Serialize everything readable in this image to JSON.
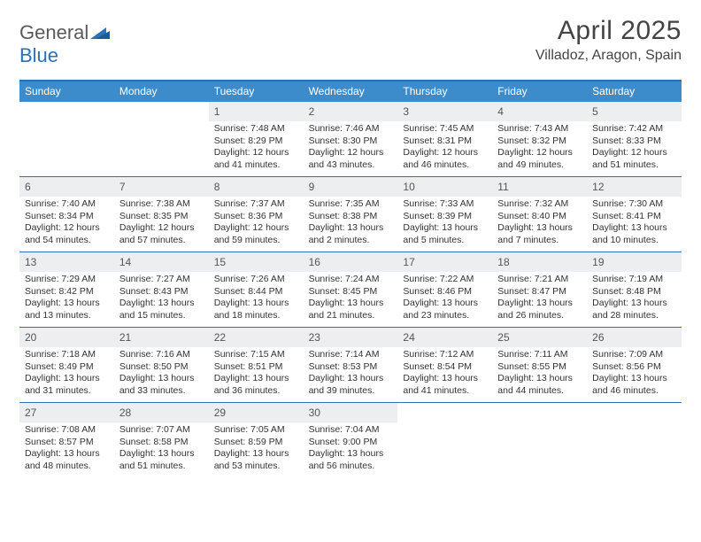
{
  "logo": {
    "text_gray": "General",
    "text_blue": "Blue"
  },
  "title": "April 2025",
  "location": "Villadoz, Aragon, Spain",
  "colors": {
    "header_bar": "#3c8ccc",
    "rule": "#2a71b8",
    "daynum_bg": "#eceeef",
    "text": "#333333"
  },
  "typography": {
    "title_fontsize": 30,
    "location_fontsize": 16,
    "dow_fontsize": 12,
    "body_fontsize": 10.5
  },
  "days_of_week": [
    "Sunday",
    "Monday",
    "Tuesday",
    "Wednesday",
    "Thursday",
    "Friday",
    "Saturday"
  ],
  "weeks": [
    [
      null,
      null,
      {
        "n": "1",
        "sr": "Sunrise: 7:48 AM",
        "ss": "Sunset: 8:29 PM",
        "dl": "Daylight: 12 hours and 41 minutes."
      },
      {
        "n": "2",
        "sr": "Sunrise: 7:46 AM",
        "ss": "Sunset: 8:30 PM",
        "dl": "Daylight: 12 hours and 43 minutes."
      },
      {
        "n": "3",
        "sr": "Sunrise: 7:45 AM",
        "ss": "Sunset: 8:31 PM",
        "dl": "Daylight: 12 hours and 46 minutes."
      },
      {
        "n": "4",
        "sr": "Sunrise: 7:43 AM",
        "ss": "Sunset: 8:32 PM",
        "dl": "Daylight: 12 hours and 49 minutes."
      },
      {
        "n": "5",
        "sr": "Sunrise: 7:42 AM",
        "ss": "Sunset: 8:33 PM",
        "dl": "Daylight: 12 hours and 51 minutes."
      }
    ],
    [
      {
        "n": "6",
        "sr": "Sunrise: 7:40 AM",
        "ss": "Sunset: 8:34 PM",
        "dl": "Daylight: 12 hours and 54 minutes."
      },
      {
        "n": "7",
        "sr": "Sunrise: 7:38 AM",
        "ss": "Sunset: 8:35 PM",
        "dl": "Daylight: 12 hours and 57 minutes."
      },
      {
        "n": "8",
        "sr": "Sunrise: 7:37 AM",
        "ss": "Sunset: 8:36 PM",
        "dl": "Daylight: 12 hours and 59 minutes."
      },
      {
        "n": "9",
        "sr": "Sunrise: 7:35 AM",
        "ss": "Sunset: 8:38 PM",
        "dl": "Daylight: 13 hours and 2 minutes."
      },
      {
        "n": "10",
        "sr": "Sunrise: 7:33 AM",
        "ss": "Sunset: 8:39 PM",
        "dl": "Daylight: 13 hours and 5 minutes."
      },
      {
        "n": "11",
        "sr": "Sunrise: 7:32 AM",
        "ss": "Sunset: 8:40 PM",
        "dl": "Daylight: 13 hours and 7 minutes."
      },
      {
        "n": "12",
        "sr": "Sunrise: 7:30 AM",
        "ss": "Sunset: 8:41 PM",
        "dl": "Daylight: 13 hours and 10 minutes."
      }
    ],
    [
      {
        "n": "13",
        "sr": "Sunrise: 7:29 AM",
        "ss": "Sunset: 8:42 PM",
        "dl": "Daylight: 13 hours and 13 minutes."
      },
      {
        "n": "14",
        "sr": "Sunrise: 7:27 AM",
        "ss": "Sunset: 8:43 PM",
        "dl": "Daylight: 13 hours and 15 minutes."
      },
      {
        "n": "15",
        "sr": "Sunrise: 7:26 AM",
        "ss": "Sunset: 8:44 PM",
        "dl": "Daylight: 13 hours and 18 minutes."
      },
      {
        "n": "16",
        "sr": "Sunrise: 7:24 AM",
        "ss": "Sunset: 8:45 PM",
        "dl": "Daylight: 13 hours and 21 minutes."
      },
      {
        "n": "17",
        "sr": "Sunrise: 7:22 AM",
        "ss": "Sunset: 8:46 PM",
        "dl": "Daylight: 13 hours and 23 minutes."
      },
      {
        "n": "18",
        "sr": "Sunrise: 7:21 AM",
        "ss": "Sunset: 8:47 PM",
        "dl": "Daylight: 13 hours and 26 minutes."
      },
      {
        "n": "19",
        "sr": "Sunrise: 7:19 AM",
        "ss": "Sunset: 8:48 PM",
        "dl": "Daylight: 13 hours and 28 minutes."
      }
    ],
    [
      {
        "n": "20",
        "sr": "Sunrise: 7:18 AM",
        "ss": "Sunset: 8:49 PM",
        "dl": "Daylight: 13 hours and 31 minutes."
      },
      {
        "n": "21",
        "sr": "Sunrise: 7:16 AM",
        "ss": "Sunset: 8:50 PM",
        "dl": "Daylight: 13 hours and 33 minutes."
      },
      {
        "n": "22",
        "sr": "Sunrise: 7:15 AM",
        "ss": "Sunset: 8:51 PM",
        "dl": "Daylight: 13 hours and 36 minutes."
      },
      {
        "n": "23",
        "sr": "Sunrise: 7:14 AM",
        "ss": "Sunset: 8:53 PM",
        "dl": "Daylight: 13 hours and 39 minutes."
      },
      {
        "n": "24",
        "sr": "Sunrise: 7:12 AM",
        "ss": "Sunset: 8:54 PM",
        "dl": "Daylight: 13 hours and 41 minutes."
      },
      {
        "n": "25",
        "sr": "Sunrise: 7:11 AM",
        "ss": "Sunset: 8:55 PM",
        "dl": "Daylight: 13 hours and 44 minutes."
      },
      {
        "n": "26",
        "sr": "Sunrise: 7:09 AM",
        "ss": "Sunset: 8:56 PM",
        "dl": "Daylight: 13 hours and 46 minutes."
      }
    ],
    [
      {
        "n": "27",
        "sr": "Sunrise: 7:08 AM",
        "ss": "Sunset: 8:57 PM",
        "dl": "Daylight: 13 hours and 48 minutes."
      },
      {
        "n": "28",
        "sr": "Sunrise: 7:07 AM",
        "ss": "Sunset: 8:58 PM",
        "dl": "Daylight: 13 hours and 51 minutes."
      },
      {
        "n": "29",
        "sr": "Sunrise: 7:05 AM",
        "ss": "Sunset: 8:59 PM",
        "dl": "Daylight: 13 hours and 53 minutes."
      },
      {
        "n": "30",
        "sr": "Sunrise: 7:04 AM",
        "ss": "Sunset: 9:00 PM",
        "dl": "Daylight: 13 hours and 56 minutes."
      },
      null,
      null,
      null
    ]
  ]
}
